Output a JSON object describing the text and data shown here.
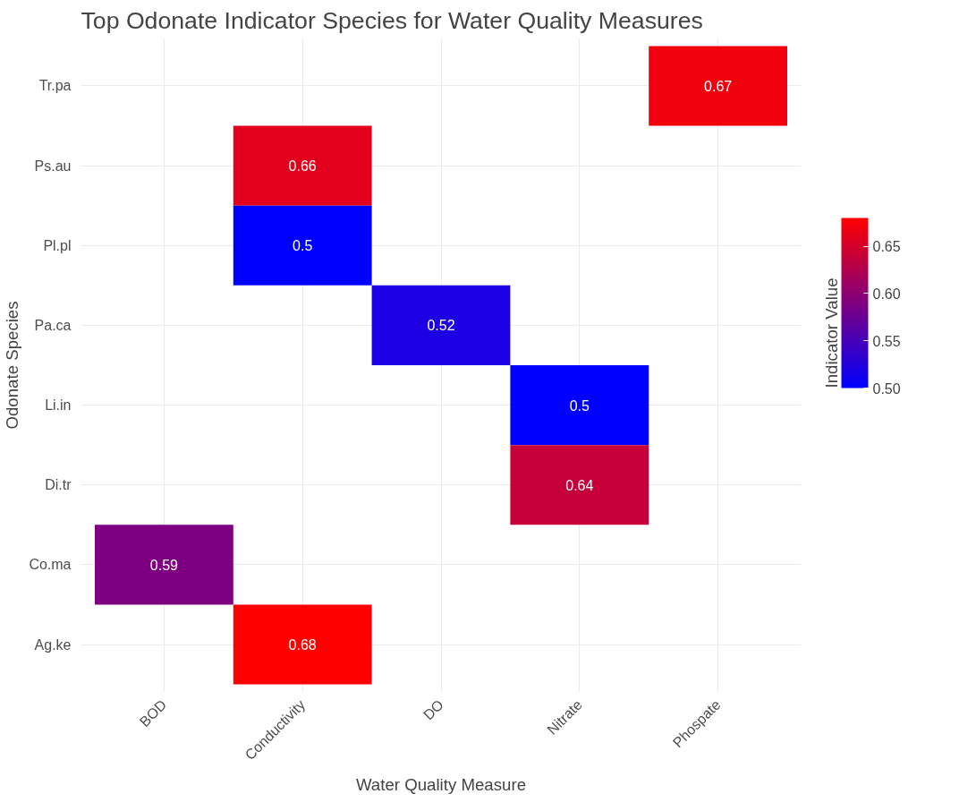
{
  "chart_data": {
    "type": "heatmap",
    "title": "Top Odonate Indicator Species for Water Quality Measures",
    "xlabel": "Water Quality Measure",
    "ylabel": "Odonate Species",
    "clabel": "Indicator Value",
    "categories": [
      "BOD",
      "Conductivity",
      "DO",
      "Nitrate",
      "Phospate"
    ],
    "y_categories": [
      "Tr.pa",
      "Ps.au",
      "Pl.pl",
      "Pa.ca",
      "Li.in",
      "Di.tr",
      "Co.ma",
      "Ag.ke"
    ],
    "cells": [
      [
        null,
        null,
        null,
        null,
        0.67
      ],
      [
        null,
        0.66,
        null,
        null,
        null
      ],
      [
        null,
        0.5,
        null,
        null,
        null
      ],
      [
        null,
        null,
        0.52,
        null,
        null
      ],
      [
        null,
        null,
        null,
        0.5,
        null
      ],
      [
        null,
        null,
        null,
        0.64,
        null
      ],
      [
        0.59,
        null,
        null,
        null,
        null
      ],
      [
        null,
        0.68,
        null,
        null,
        null
      ]
    ],
    "clim": [
      0.5,
      0.68
    ],
    "cticks": [
      {
        "value": 0.5,
        "label": "0.50"
      },
      {
        "value": 0.55,
        "label": "0.55"
      },
      {
        "value": 0.6,
        "label": "0.60"
      },
      {
        "value": 0.65,
        "label": "0.65"
      }
    ],
    "colors": [
      "#0000ff",
      "#ff0000"
    ],
    "data_labels": true,
    "grid": true
  }
}
